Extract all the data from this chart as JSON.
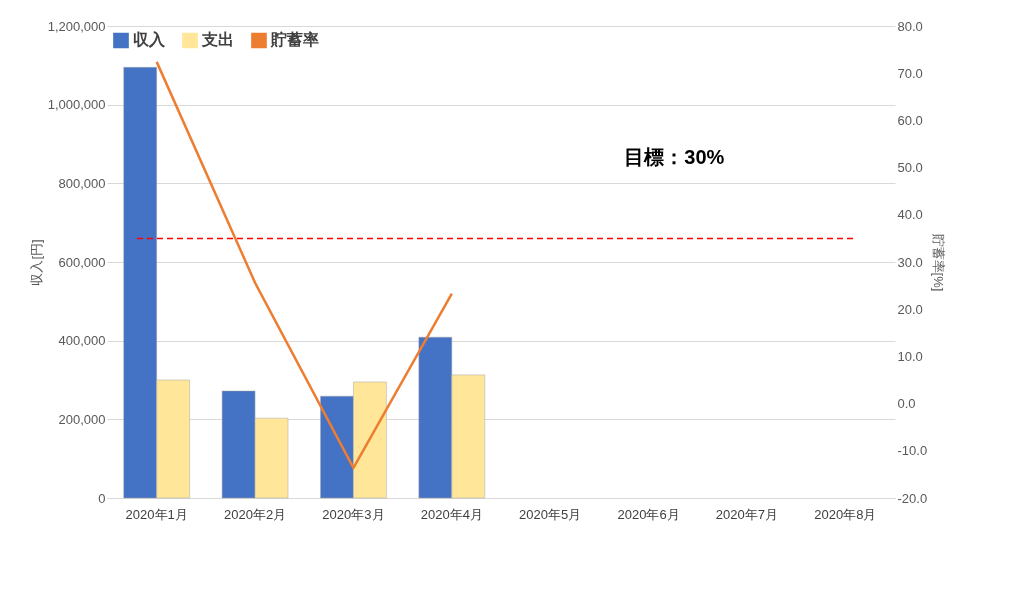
{
  "chart_data": {
    "type": "bar",
    "categories": [
      "2020年1月",
      "2020年2月",
      "2020年3月",
      "2020年4月",
      "2020年5月",
      "2020年6月",
      "2020年7月",
      "2020年8月"
    ],
    "series": [
      {
        "name": "収入",
        "color": "#4472c4",
        "values": [
          1095000,
          272000,
          259000,
          409000,
          null,
          null,
          null,
          null
        ]
      },
      {
        "name": "支出",
        "color": "#ffe699",
        "values": [
          300000,
          203000,
          295000,
          313000,
          null,
          null,
          null,
          null
        ]
      },
      {
        "name": "貯蓄率",
        "type": "line",
        "axis": "y2",
        "color": "#ed7d31",
        "values": [
          72.4,
          25.6,
          -13.6,
          23.3,
          null,
          null,
          null,
          null
        ]
      }
    ],
    "ylabel": "収入[円]",
    "y2label": "貯蓄率[%]",
    "ylim": [
      0,
      1200000
    ],
    "yticks": [
      {
        "value": 0,
        "label": "0"
      },
      {
        "value": 200000,
        "label": "200,000"
      },
      {
        "value": 400000,
        "label": "400,000"
      },
      {
        "value": 600000,
        "label": "600,000"
      },
      {
        "value": 800000,
        "label": "800,000"
      },
      {
        "value": 1000000,
        "label": "1,000,000"
      },
      {
        "value": 1200000,
        "label": "1,200,000"
      }
    ],
    "y2lim": [
      -20,
      80
    ],
    "y2ticks": [
      {
        "value": -20,
        "label": "-20.0"
      },
      {
        "value": -10,
        "label": "-10.0"
      },
      {
        "value": 0,
        "label": "0.0"
      },
      {
        "value": 10,
        "label": "10.0"
      },
      {
        "value": 20,
        "label": "20.0"
      },
      {
        "value": 30,
        "label": "30.0"
      },
      {
        "value": 40,
        "label": "40.0"
      },
      {
        "value": 50,
        "label": "50.0"
      },
      {
        "value": 60,
        "label": "60.0"
      },
      {
        "value": 70,
        "label": "70.0"
      },
      {
        "value": 80,
        "label": "80.0"
      }
    ],
    "ref_lines": [
      {
        "axis": "y2",
        "value": 35,
        "color": "#ff0000",
        "line_style": "dashed"
      }
    ],
    "annotations": [
      "目標：30%"
    ],
    "grid": "y",
    "legend": "top left"
  }
}
